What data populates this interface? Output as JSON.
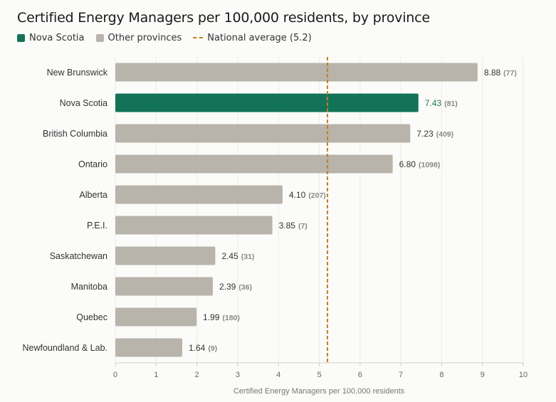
{
  "title": "Certified Energy Managers per 100,000 residents, by province",
  "legend": {
    "highlight_label": "Nova Scotia",
    "other_label": "Other provinces",
    "reference_label": "National average (5.2)"
  },
  "colors": {
    "highlight": "#137358",
    "other": "#b8b4ab",
    "reference": "#c47f1f"
  },
  "chart_data": {
    "type": "bar",
    "orientation": "horizontal",
    "title": "Certified Energy Managers per 100,000 residents, by province",
    "xlabel": "Certified Energy Managers per 100,000 residents",
    "xlim": [
      0,
      10
    ],
    "xticks": [
      0,
      1,
      2,
      3,
      4,
      5,
      6,
      7,
      8,
      9,
      10
    ],
    "grid": true,
    "legend_position": "top-left",
    "reference_line": {
      "value": 5.2,
      "label": "National average (5.2)"
    },
    "highlight_category": "Nova Scotia",
    "categories": [
      "New Brunswick",
      "Nova Scotia",
      "British Columbia",
      "Ontario",
      "Alberta",
      "P.E.I.",
      "Saskatchewan",
      "Manitoba",
      "Quebec",
      "Newfoundland & Lab."
    ],
    "values": [
      8.88,
      7.43,
      7.23,
      6.8,
      4.1,
      3.85,
      2.45,
      2.39,
      1.99,
      1.64
    ],
    "value_labels": [
      "8.88",
      "7.43",
      "7.23",
      "6.80",
      "4.10",
      "3.85",
      "2.45",
      "2.39",
      "1.99",
      "1.64"
    ],
    "counts": [
      "(77)",
      "(81)",
      "(409)",
      "(1098)",
      "(207)",
      "(7)",
      "(31)",
      "(36)",
      "(180)",
      "(9)"
    ]
  }
}
